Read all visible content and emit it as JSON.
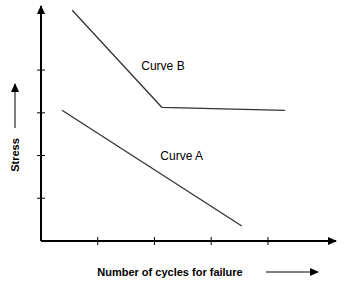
{
  "chart_data": {
    "type": "line",
    "x_label": "Number of cycles for failure",
    "y_label": "Stress",
    "xlim": [
      0,
      5.2
    ],
    "ylim": [
      0,
      5.5
    ],
    "xticks": [
      1,
      2,
      3,
      4
    ],
    "yticks": [
      1,
      2,
      3,
      4
    ],
    "tick_labels": false,
    "grid": false,
    "series": [
      {
        "color": "#333333",
        "x": [
          0.37,
          3.54
        ],
        "values": [
          3.06,
          0.35
        ]
      },
      {
        "color": "#333333",
        "x": [
          0.55,
          2.13,
          4.3
        ],
        "values": [
          5.4,
          3.13,
          3.06
        ]
      }
    ],
    "annotations": [
      {
        "text": "Curve A",
        "x": 2.48,
        "y": 1.9
      },
      {
        "text": "Curve B",
        "x": 2.15,
        "y": 4.0
      }
    ]
  }
}
